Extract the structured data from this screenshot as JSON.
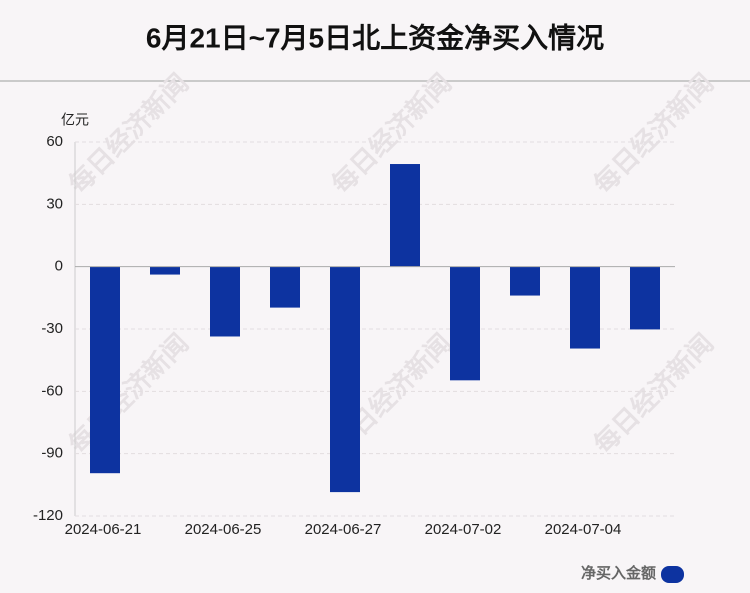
{
  "chart_data": {
    "type": "bar",
    "title": "6月21日~7月5日北上资金净买入情况",
    "y_unit": "亿元",
    "watermark": "每日经济新闻",
    "categories": [
      "2024-06-21",
      null,
      "2024-06-25",
      null,
      "2024-06-27",
      null,
      "2024-07-02",
      null,
      "2024-07-04",
      null
    ],
    "series": [
      {
        "name": "净买入金额",
        "color": "#0d33a0",
        "values": [
          -99.4,
          -3.8,
          -33.6,
          -19.7,
          -108.5,
          49.4,
          -54.7,
          -13.9,
          -39.4,
          -30.2
        ]
      }
    ],
    "ylim": [
      -120,
      60
    ],
    "yticks": [
      -120,
      -90,
      -60,
      -30,
      0,
      30,
      60
    ],
    "grid": true,
    "legend": "bottom-right"
  }
}
